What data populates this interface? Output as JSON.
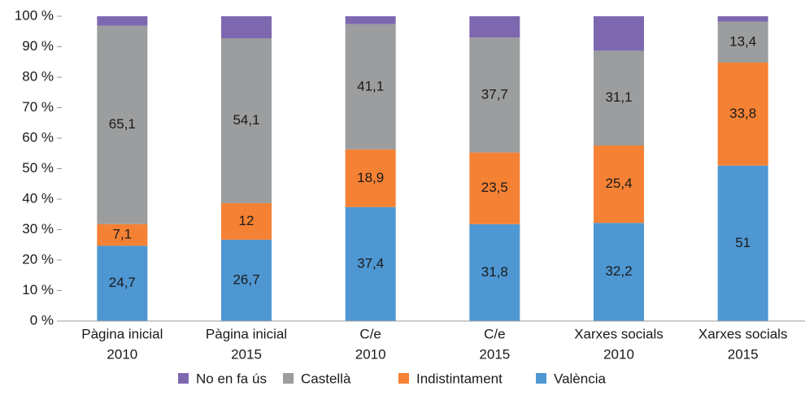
{
  "chart_data": {
    "type": "stacked_bar",
    "categories": [
      [
        "Pàgina inicial",
        "2010"
      ],
      [
        "Pàgina inicial",
        "2015"
      ],
      [
        "C/e",
        "2010"
      ],
      [
        "C/e",
        "2015"
      ],
      [
        "Xarxes socials",
        "2010"
      ],
      [
        "Xarxes socials",
        "2015"
      ]
    ],
    "series": [
      {
        "name": "No en fa ús",
        "color": "#7d68b0",
        "values": [
          3.1,
          7.2,
          2.6,
          7,
          11.3,
          1.8
        ]
      },
      {
        "name": "Castellà",
        "color": "#9b9d9e",
        "values": [
          65.1,
          54.1,
          41.1,
          37.7,
          31.1,
          13.4
        ],
        "value_labels": [
          "65,1",
          "54,1",
          "41,1",
          "37,7",
          "31,1",
          "13,4"
        ]
      },
      {
        "name": "Indistintament",
        "color": "#f58134",
        "values": [
          7.1,
          12,
          18.9,
          23.5,
          25.4,
          33.8
        ],
        "value_labels": [
          "7,1",
          "12",
          "18,9",
          "23,5",
          "25,4",
          "33,8"
        ]
      },
      {
        "name": "València",
        "color": "#4e97d2",
        "values": [
          24.7,
          26.7,
          37.4,
          31.8,
          32.2,
          51
        ],
        "value_labels": [
          "24,7",
          "26,7",
          "37,4",
          "31,8",
          "32,2",
          "51"
        ]
      }
    ],
    "ylim": [
      0,
      100
    ],
    "yticks": [
      {
        "value": 0,
        "label": "0 %"
      },
      {
        "value": 10,
        "label": "10 %"
      },
      {
        "value": 20,
        "label": "20 %"
      },
      {
        "value": 30,
        "label": "30 %"
      },
      {
        "value": 40,
        "label": "40 %"
      },
      {
        "value": 50,
        "label": "50 %"
      },
      {
        "value": 60,
        "label": "60 %"
      },
      {
        "value": 70,
        "label": "70 %"
      },
      {
        "value": 80,
        "label": "80 %"
      },
      {
        "value": 90,
        "label": "90 %"
      },
      {
        "value": 100,
        "label": "100 %"
      }
    ],
    "grid": false,
    "legend": "bottom"
  }
}
